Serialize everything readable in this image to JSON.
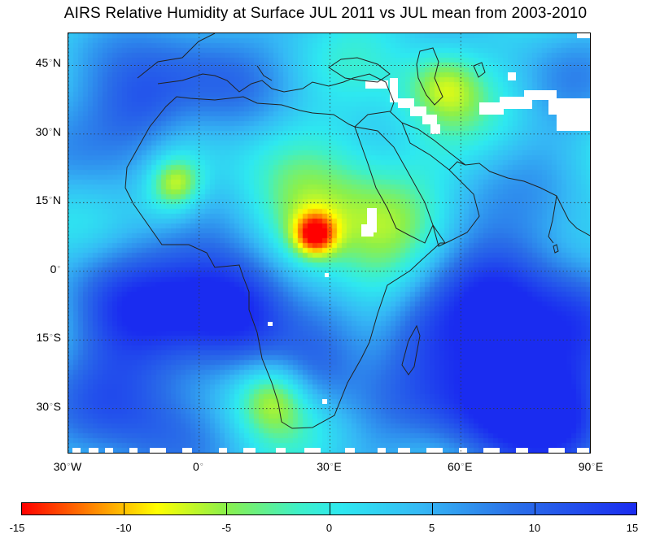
{
  "title": "AIRS Relative Humidity at Surface JUL 2011 vs JUL mean from 2003-2010",
  "map": {
    "extent": {
      "lon_min": -30,
      "lon_max": 90,
      "lat_min": -40,
      "lat_max": 52
    },
    "latitude_labels": [
      {
        "lat": 45,
        "value": "45",
        "hemi": "N"
      },
      {
        "lat": 30,
        "value": "30",
        "hemi": "N"
      },
      {
        "lat": 15,
        "value": "15",
        "hemi": "N"
      },
      {
        "lat": 0,
        "value": "0",
        "hemi": ""
      },
      {
        "lat": -15,
        "value": "15",
        "hemi": "S"
      },
      {
        "lat": -30,
        "value": "30",
        "hemi": "S"
      }
    ],
    "longitude_labels": [
      {
        "lon": -30,
        "value": "30",
        "hemi": "W"
      },
      {
        "lon": 0,
        "value": "0",
        "hemi": ""
      },
      {
        "lon": 30,
        "value": "30",
        "hemi": "E"
      },
      {
        "lon": 60,
        "value": "60",
        "hemi": "E"
      },
      {
        "lon": 90,
        "value": "90",
        "hemi": "E"
      }
    ],
    "gridlines": "dotted"
  },
  "colorbar": {
    "min": -15,
    "max": 15,
    "tick_labels": [
      "-15",
      "-10",
      "-5",
      "0",
      "5",
      "10",
      "15"
    ],
    "colors": [
      "#ff0000",
      "#ffff00",
      "#3ef0c8",
      "#2ee8f0",
      "#2a70e8",
      "#1a2cf0"
    ]
  }
}
